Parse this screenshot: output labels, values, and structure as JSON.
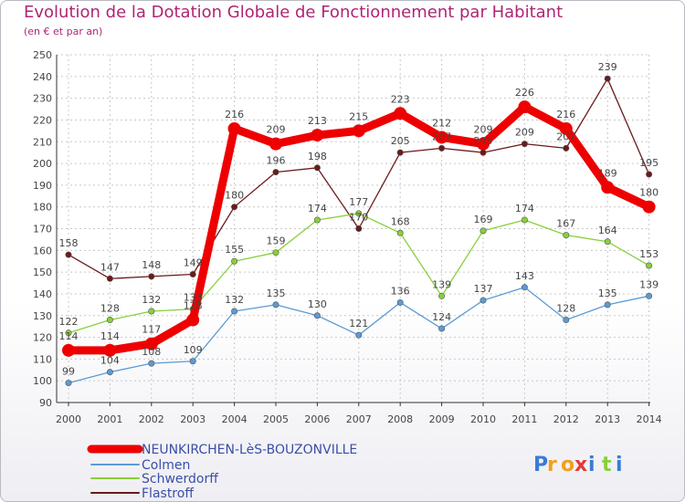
{
  "colors": {
    "NEUNKIRCHEN-LèS-BOUZONVILLE": "#ee0000",
    "Colmen": "#5b9bd5",
    "Schwerdorff": "#88d03a",
    "Flastroff": "#6a1a1a",
    "title": "#b02474",
    "grid": "#c8c8c8",
    "axis": "#333333"
  },
  "logo": {
    "letters": [
      "P",
      "r",
      "o",
      "x",
      "i",
      "t",
      "i"
    ]
  },
  "chart_data": {
    "type": "line",
    "title": "Evolution de la Dotation Globale de Fonctionnement par Habitant",
    "subtitle": "(en € et par an)",
    "xlabel": "",
    "ylabel": "",
    "ylim": [
      90,
      250
    ],
    "yticks": [
      90,
      100,
      110,
      120,
      130,
      140,
      150,
      160,
      170,
      180,
      190,
      200,
      210,
      220,
      230,
      240,
      250
    ],
    "categories": [
      "2000",
      "2001",
      "2002",
      "2003",
      "2004",
      "2005",
      "2006",
      "2007",
      "2008",
      "2009",
      "2010",
      "2011",
      "2012",
      "2013",
      "2014"
    ],
    "series": [
      {
        "name": "NEUNKIRCHEN-LèS-BOUZONVILLE",
        "values": [
          114,
          114,
          117,
          128,
          216,
          209,
          213,
          215,
          223,
          212,
          209,
          226,
          216,
          189,
          180
        ]
      },
      {
        "name": "Colmen",
        "values": [
          99,
          104,
          108,
          109,
          132,
          135,
          130,
          121,
          136,
          124,
          137,
          143,
          128,
          135,
          139
        ]
      },
      {
        "name": "Schwerdorff",
        "values": [
          122,
          128,
          132,
          133,
          155,
          159,
          174,
          177,
          168,
          139,
          169,
          174,
          167,
          164,
          153
        ]
      },
      {
        "name": "Flastroff",
        "values": [
          158,
          147,
          148,
          149,
          180,
          196,
          198,
          170,
          205,
          207,
          205,
          209,
          207,
          239,
          195
        ]
      }
    ],
    "legend_position": "bottom-left",
    "grid": true
  }
}
